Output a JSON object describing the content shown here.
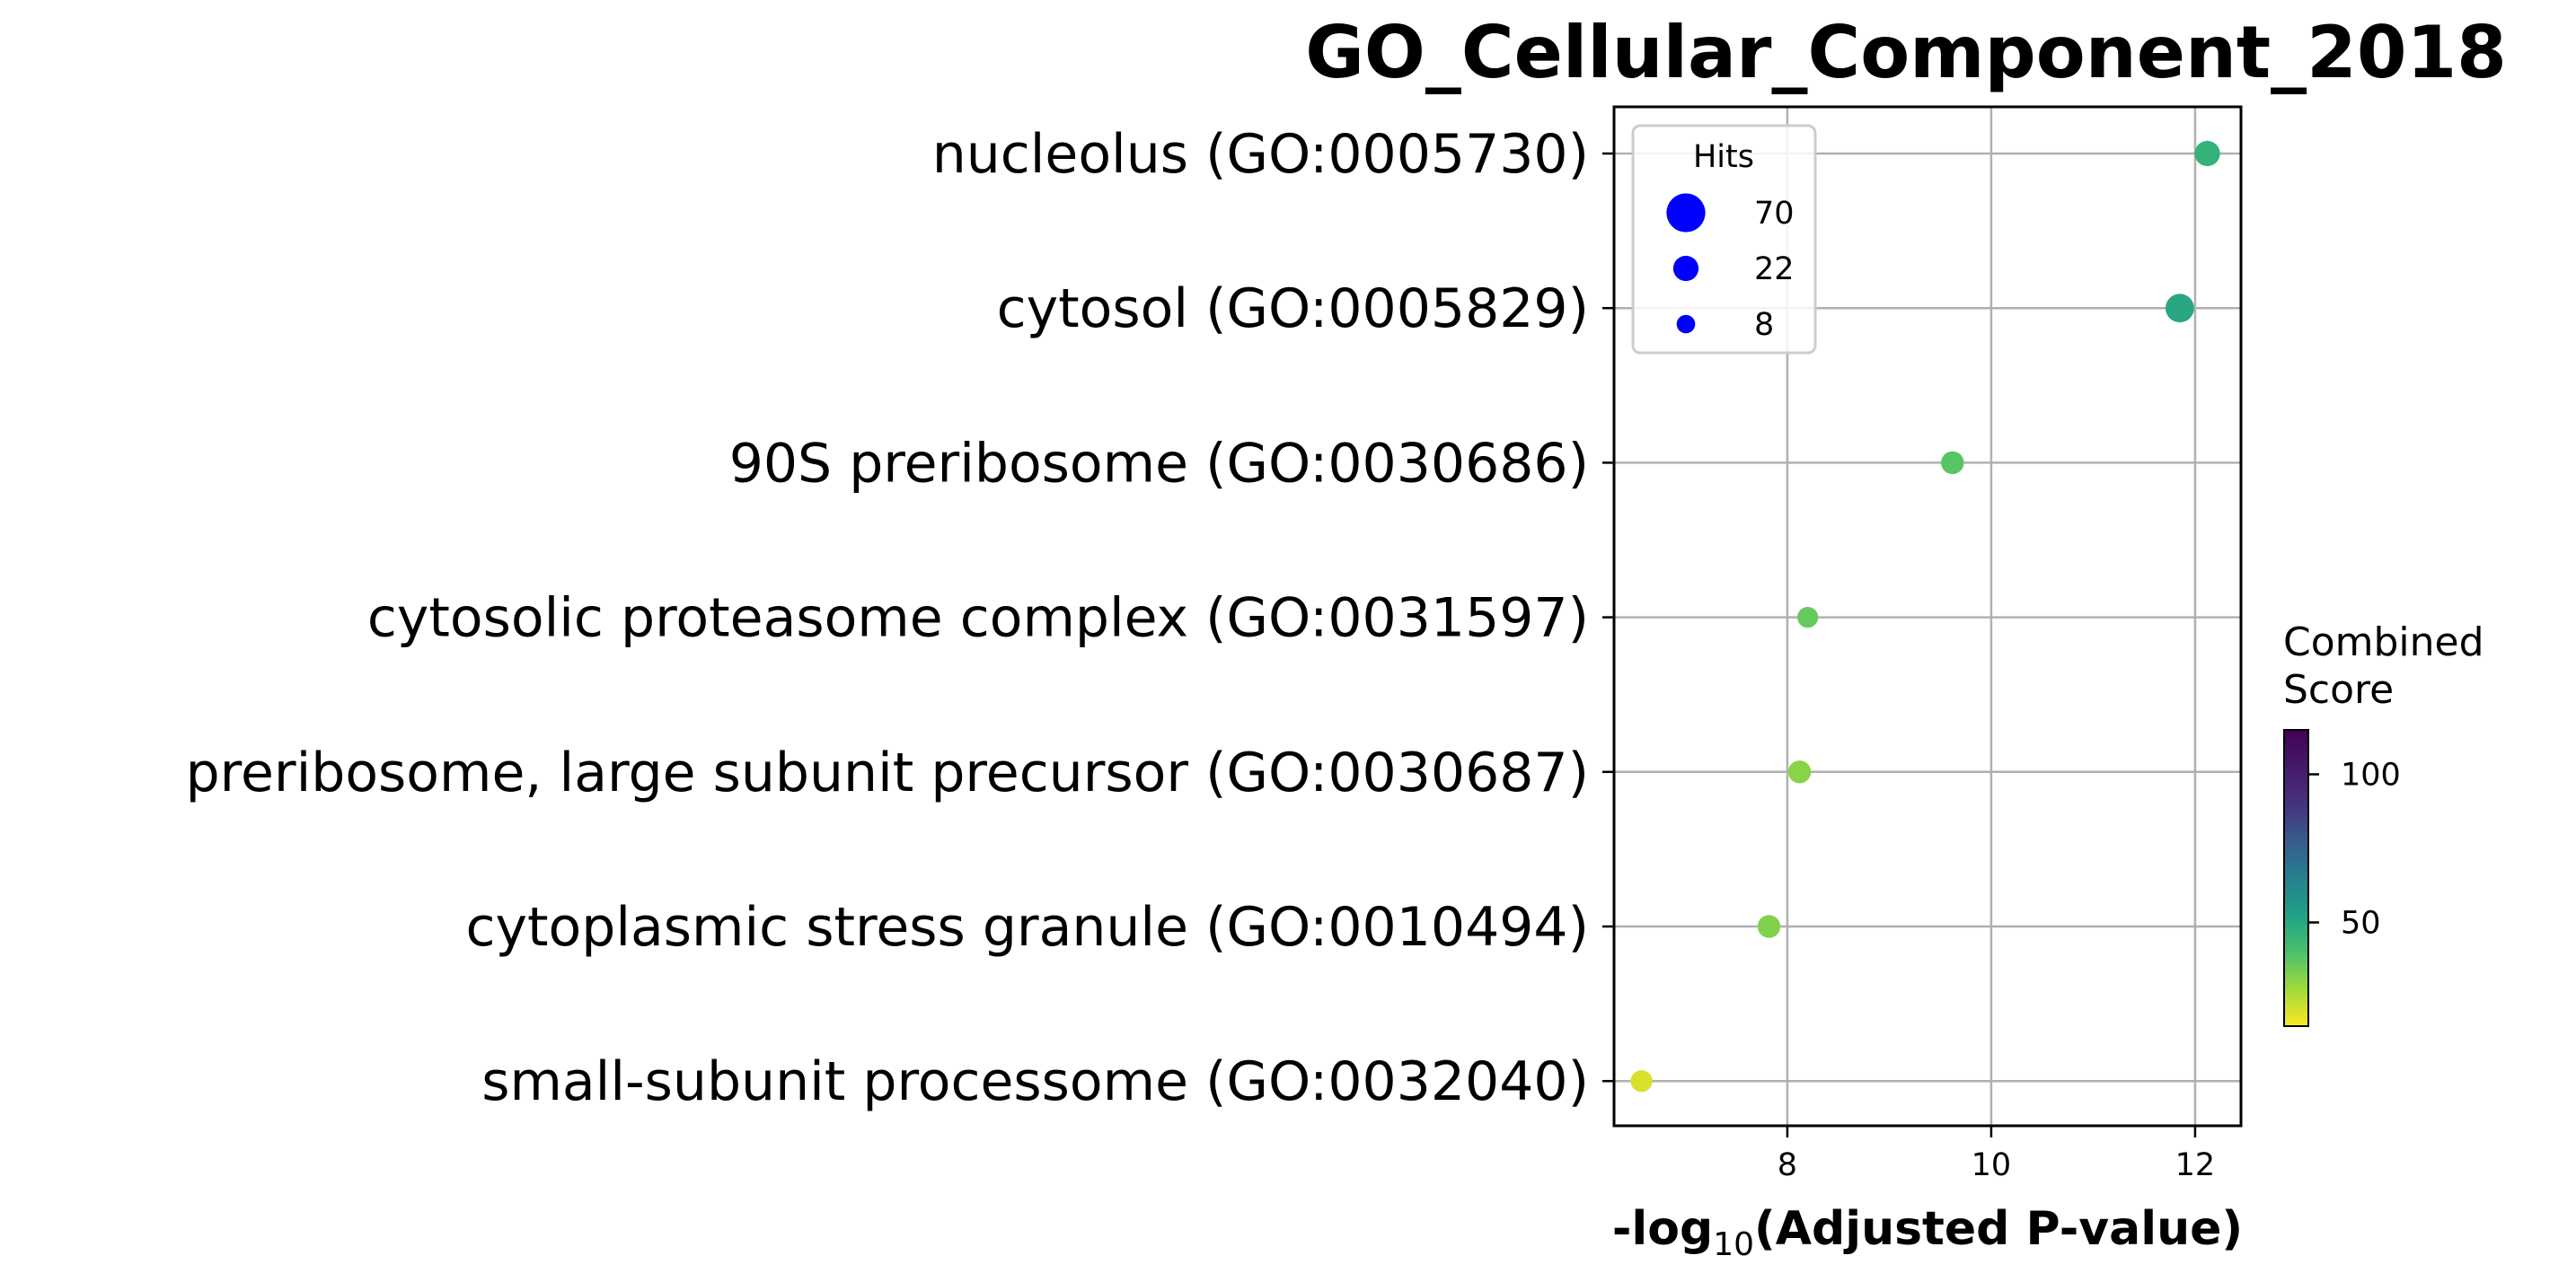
{
  "chart_data": {
    "type": "scatter",
    "title": "GO_Cellular_Component_2018",
    "xlabel_prefix": "-log",
    "xlabel_subscript": "10",
    "xlabel_suffix": "(Adjusted P-value)",
    "xlim": [
      6.3,
      12.45
    ],
    "xticks": [
      8,
      10,
      12
    ],
    "grid": true,
    "categories": [
      "nucleolus (GO:0005730)",
      "cytosol (GO:0005829)",
      "90S preribosome (GO:0030686)",
      "cytosolic proteasome complex (GO:0031597)",
      "preribosome, large subunit precursor (GO:0030687)",
      "cytoplasmic stress granule (GO:0010494)",
      "small-subunit processome (GO:0032040)"
    ],
    "points": [
      {
        "term": "nucleolus (GO:0005730)",
        "x": 12.12,
        "hits": 22,
        "combined_score": 46
      },
      {
        "term": "cytosol (GO:0005829)",
        "x": 11.85,
        "hits": 31,
        "combined_score": 50
      },
      {
        "term": "90S preribosome (GO:0030686)",
        "x": 9.62,
        "hits": 16,
        "combined_score": 38
      },
      {
        "term": "cytosolic proteasome complex (GO:0031597)",
        "x": 8.2,
        "hits": 12,
        "combined_score": 36
      },
      {
        "term": "preribosome, large subunit precursor (GO:0030687)",
        "x": 8.12,
        "hits": 16,
        "combined_score": 31
      },
      {
        "term": "cytoplasmic stress granule (GO:0010494)",
        "x": 7.82,
        "hits": 16,
        "combined_score": 32
      },
      {
        "term": "small-subunit processome (GO:0032040)",
        "x": 6.57,
        "hits": 14,
        "combined_score": 20
      }
    ],
    "size_legend": {
      "title": "Hits",
      "placement": "upper-left",
      "entries": [
        {
          "label": "70",
          "hits": 70
        },
        {
          "label": "22",
          "hits": 22
        },
        {
          "label": "8",
          "hits": 8
        }
      ],
      "color": "#0000ff"
    },
    "colorbar": {
      "title_line1": "Combined",
      "title_line2": "Score",
      "colormap": "viridis_r",
      "range": [
        15,
        115
      ],
      "ticks": [
        {
          "label": "100",
          "value": 100
        },
        {
          "label": "50",
          "value": 50
        }
      ]
    }
  }
}
